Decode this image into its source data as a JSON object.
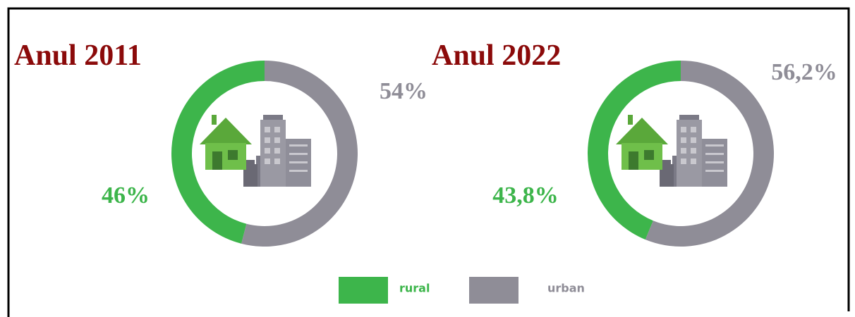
{
  "chart_data": [
    {
      "type": "donut",
      "title": "Anul 2011",
      "categories": [
        "rural",
        "urban"
      ],
      "values": [
        46,
        54
      ],
      "value_labels": [
        "46%",
        "54%"
      ],
      "colors": [
        "#3db54b",
        "#8f8d97"
      ]
    },
    {
      "type": "donut",
      "title": "Anul 2022",
      "categories": [
        "rural",
        "urban"
      ],
      "values": [
        43.8,
        56.2
      ],
      "value_labels": [
        "43,8%",
        "56,2%"
      ],
      "colors": [
        "#3db54b",
        "#8f8d97"
      ]
    }
  ]
}
